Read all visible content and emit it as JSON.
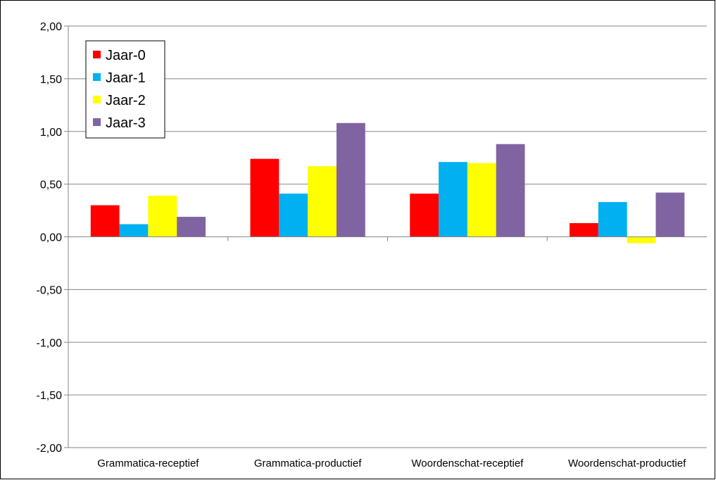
{
  "chart_data": {
    "type": "bar",
    "categories": [
      "Grammatica-receptief",
      "Grammatica-productief",
      "Woordenschat-receptief",
      "Woordenschat-productief"
    ],
    "series": [
      {
        "name": "Jaar-0",
        "color": "#ff0000",
        "values": [
          0.3,
          0.74,
          0.41,
          0.13
        ]
      },
      {
        "name": "Jaar-1",
        "color": "#00b0f0",
        "values": [
          0.12,
          0.41,
          0.71,
          0.33
        ]
      },
      {
        "name": "Jaar-2",
        "color": "#ffff00",
        "values": [
          0.39,
          0.67,
          0.7,
          -0.06
        ]
      },
      {
        "name": "Jaar-3",
        "color": "#8064a2",
        "values": [
          0.19,
          1.08,
          0.88,
          0.42
        ]
      }
    ],
    "ylim": [
      -2.0,
      2.0
    ],
    "yticks": [
      2.0,
      1.5,
      1.0,
      0.5,
      0.0,
      -0.5,
      -1.0,
      -1.5,
      -2.0
    ],
    "ytick_labels": [
      "2,00",
      "1,50",
      "1,00",
      "0,50",
      "0,00",
      "-0,50",
      "-1,00",
      "-1,50",
      "-2,00"
    ],
    "grid": true,
    "legend_position": "top-left"
  }
}
